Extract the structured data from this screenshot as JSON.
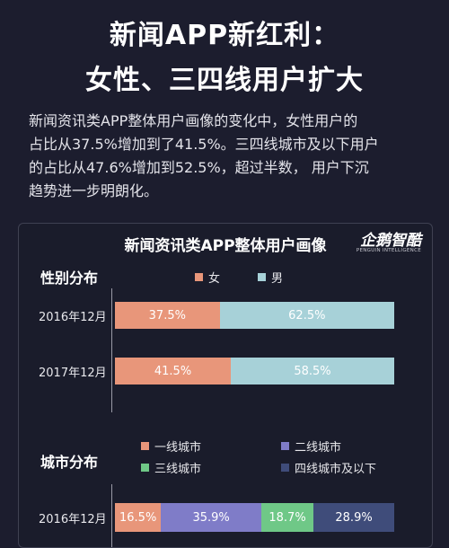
{
  "headline": {
    "line1": "新闻APP新红利：",
    "line2": "女性、三四线用户扩大"
  },
  "intro": {
    "lines": [
      "新闻资讯类APP整体用户画像的变化中，女性用户的",
      "占比从37.5%增加到了41.5%。三四线城市及以下用户",
      "的占比从47.6%增加到52.5%，超过半数， 用户下沉",
      "趋势进一步明朗化。"
    ]
  },
  "card": {
    "title": "新闻资讯类APP整体用户画像",
    "logo_main": "企鹅智酷",
    "logo_sub": "PENGUIN INTELLIGENCE"
  },
  "colors": {
    "female": "#e8967a",
    "male": "#a7d1d8",
    "tier1": "#e8967a",
    "tier2": "#7f7cc8",
    "tier3": "#6fc887",
    "tier4": "#3f4c7a"
  },
  "chart_data": [
    {
      "type": "bar",
      "stacked": true,
      "orientation": "horizontal",
      "title": "性别分布",
      "categories": [
        "2016年12月",
        "2017年12月"
      ],
      "series": [
        {
          "name": "女",
          "values": [
            37.5,
            41.5
          ],
          "labels": [
            "37.5%",
            "41.5%"
          ]
        },
        {
          "name": "男",
          "values": [
            62.5,
            58.5
          ],
          "labels": [
            "62.5%",
            "58.5%"
          ]
        }
      ],
      "legend": "top"
    },
    {
      "type": "bar",
      "stacked": true,
      "orientation": "horizontal",
      "title": "城市分布",
      "categories": [
        "2016年12月"
      ],
      "series": [
        {
          "name": "一线城市",
          "values": [
            16.5
          ],
          "labels": [
            "16.5%"
          ]
        },
        {
          "name": "二线城市",
          "values": [
            35.9
          ],
          "labels": [
            "35.9%"
          ]
        },
        {
          "name": "三线城市",
          "values": [
            18.7
          ],
          "labels": [
            "18.7%"
          ]
        },
        {
          "name": "四线城市及以下",
          "values": [
            28.9
          ],
          "labels": [
            "28.9%"
          ]
        }
      ],
      "legend": "top"
    }
  ]
}
